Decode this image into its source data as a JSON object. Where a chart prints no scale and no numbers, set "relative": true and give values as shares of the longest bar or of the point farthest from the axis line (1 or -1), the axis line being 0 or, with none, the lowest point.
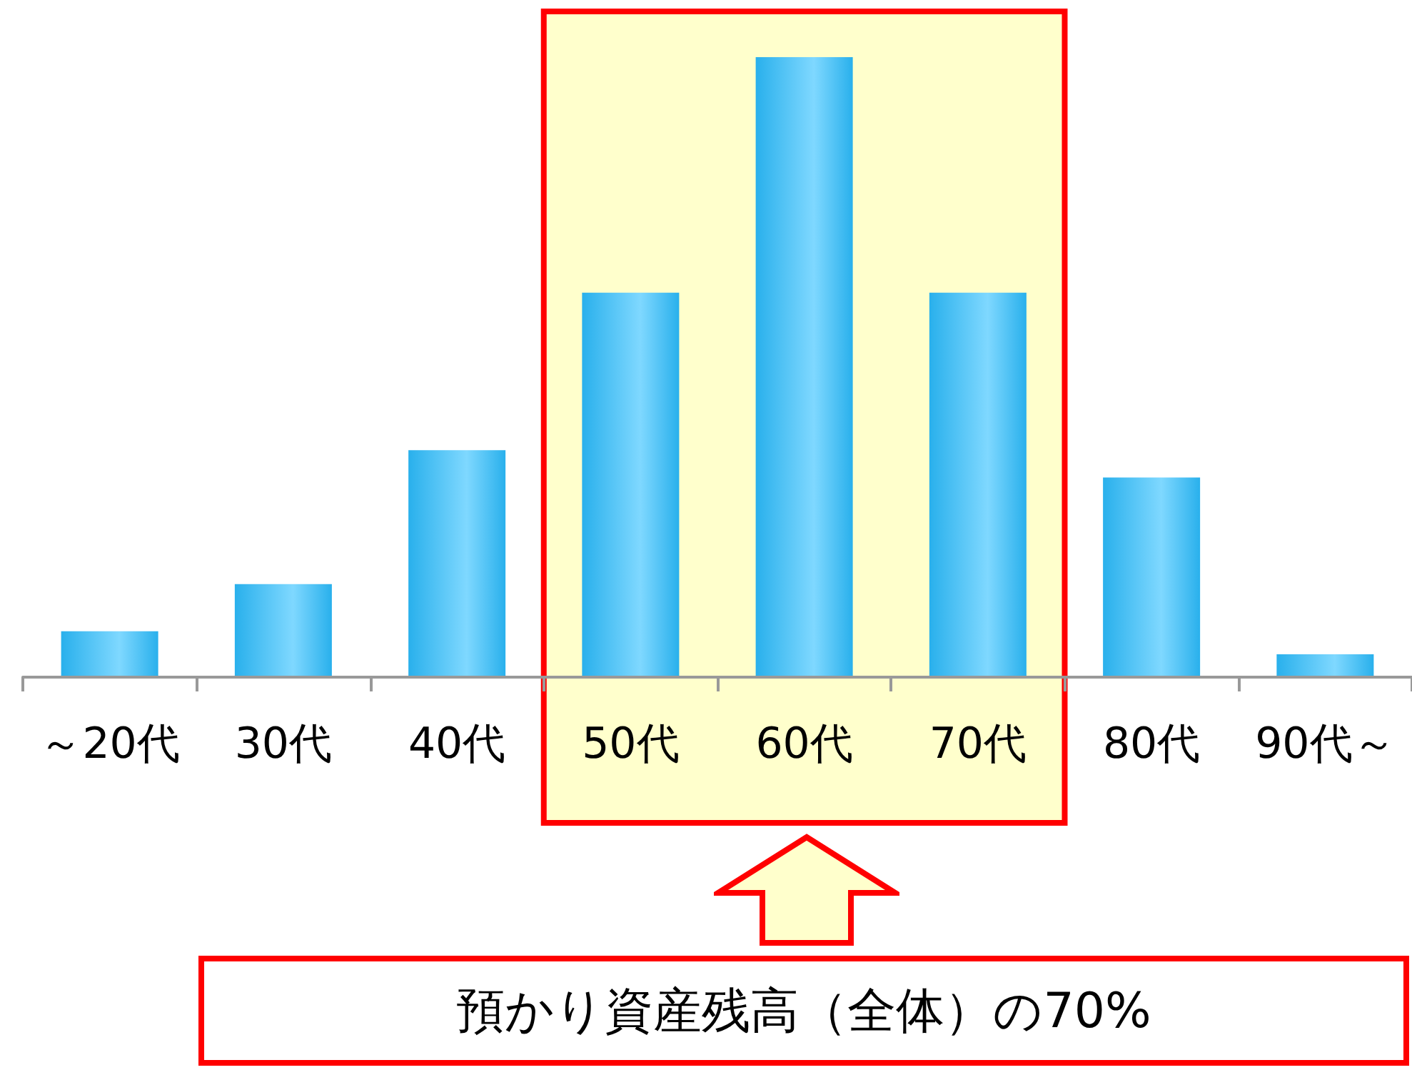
{
  "chart_data": {
    "type": "bar",
    "relative": true,
    "categories": [
      "～20代",
      "30代",
      "40代",
      "50代",
      "60代",
      "70代",
      "80代",
      "90代～"
    ],
    "values": [
      0.074,
      0.15,
      0.366,
      0.62,
      1,
      0.62,
      0.322,
      0.037
    ],
    "color": "#29b0ec",
    "bands": [
      {
        "axis": "x",
        "from": "50代",
        "to": "70代",
        "color": "#ffffcc"
      }
    ],
    "annotations": [
      "預かり資産残高（全体）の70%"
    ]
  }
}
